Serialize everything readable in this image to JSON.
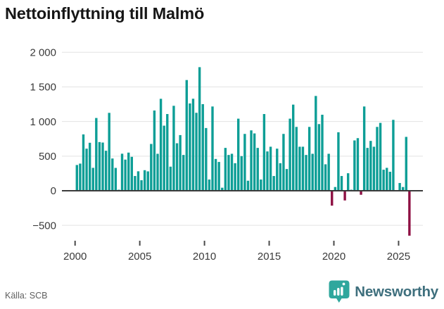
{
  "header": {
    "title": "Nettoinflyttning till Malmö"
  },
  "footer": {
    "source": "Källa: SCB",
    "brand": "Newsworthy",
    "brand_icon": "newsworthy-speech-bubble-bars-icon"
  },
  "chart_data": {
    "type": "bar",
    "title": "Nettoinflyttning till Malmö",
    "frequency": "quarterly",
    "x_start": "2000Q1",
    "x_end": "2025Q4",
    "x_tick_labels": [
      "2000",
      "2005",
      "2010",
      "2015",
      "2020",
      "2025"
    ],
    "y_ticks": [
      2000,
      1500,
      1000,
      500,
      0,
      -500
    ],
    "y_tick_labels": [
      "2 000",
      "1 500",
      "1 000",
      "500",
      "0",
      "−500"
    ],
    "ylim": [
      -700,
      2100
    ],
    "grid": "horizontal",
    "legend": "none",
    "colors": {
      "positive_bar": "#0d9e96",
      "negative_bar": "#8e1043"
    },
    "series": [
      {
        "name": "Nettoinflyttning",
        "values": [
          372,
          392,
          814,
          608,
          693,
          331,
          1051,
          703,
          696,
          578,
          1125,
          466,
          330,
          15,
          535,
          450,
          551,
          490,
          213,
          281,
          152,
          297,
          280,
          676,
          1159,
          534,
          1328,
          940,
          1108,
          348,
          1227,
          686,
          804,
          517,
          1599,
          1261,
          1329,
          1126,
          1785,
          1251,
          906,
          162,
          1217,
          459,
          416,
          44,
          619,
          517,
          534,
          398,
          1041,
          500,
          821,
          145,
          872,
          828,
          619,
          162,
          1108,
          568,
          636,
          213,
          608,
          398,
          821,
          314,
          1041,
          1244,
          922,
          636,
          636,
          517,
          922,
          534,
          1369,
          963,
          1098,
          382,
          534,
          -215,
          54,
          845,
          213,
          -140,
          253,
          15,
          727,
          760,
          -58,
          1217,
          619,
          720,
          636,
          922,
          980,
          304,
          331,
          274,
          1024,
          10,
          112,
          54,
          778,
          -649
        ]
      }
    ]
  }
}
